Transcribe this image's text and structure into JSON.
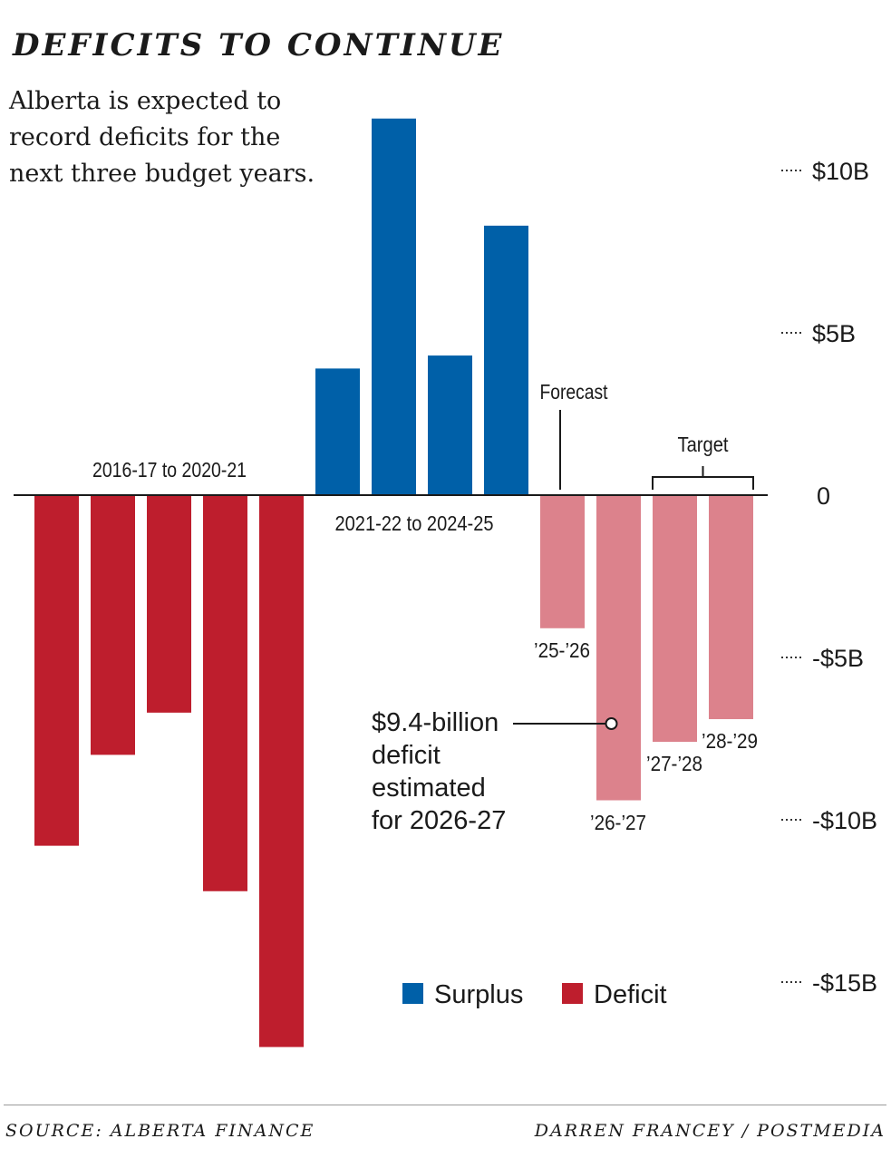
{
  "header": {
    "title": "DEFICITS TO CONTINUE",
    "subtitle": "Alberta is expected to record deficits for the next three budget years."
  },
  "footer": {
    "source": "SOURCE: ALBERTA FINANCE",
    "credit": "DARREN FRANCEY / POSTMEDIA"
  },
  "colors": {
    "surplus": "#0060a8",
    "deficit": "#be1e2d",
    "forecast": "#dc828c",
    "text": "#1a1a1a"
  },
  "chart_data": {
    "type": "bar",
    "title": "DEFICITS TO CONTINUE",
    "units": "billions of dollars",
    "ylim": [
      -17.5,
      11.7
    ],
    "yticks": [
      {
        "value": 10,
        "label": "$10B"
      },
      {
        "value": 5,
        "label": "$5B"
      },
      {
        "value": 0,
        "label": "0"
      },
      {
        "value": -5,
        "label": "-$5B"
      },
      {
        "value": -10,
        "label": "-$10B"
      },
      {
        "value": -15,
        "label": "-$15B"
      }
    ],
    "bars": [
      {
        "period": "2016-17",
        "value": -10.8,
        "kind": "deficit",
        "label": ""
      },
      {
        "period": "2017-18",
        "value": -8.0,
        "kind": "deficit",
        "label": ""
      },
      {
        "period": "2018-19",
        "value": -6.7,
        "kind": "deficit",
        "label": ""
      },
      {
        "period": "2019-20",
        "value": -12.2,
        "kind": "deficit",
        "label": ""
      },
      {
        "period": "2020-21",
        "value": -17.0,
        "kind": "deficit",
        "label": ""
      },
      {
        "period": "2021-22",
        "value": 3.9,
        "kind": "surplus",
        "label": ""
      },
      {
        "period": "2022-23",
        "value": 11.6,
        "kind": "surplus",
        "label": ""
      },
      {
        "period": "2023-24",
        "value": 4.3,
        "kind": "surplus",
        "label": ""
      },
      {
        "period": "2024-25",
        "value": 8.3,
        "kind": "surplus",
        "label": ""
      },
      {
        "period": "2025-26",
        "value": -4.1,
        "kind": "forecast",
        "label": "’25-’26"
      },
      {
        "period": "2026-27",
        "value": -9.4,
        "kind": "forecast",
        "label": "’26-’27"
      },
      {
        "period": "2027-28",
        "value": -7.6,
        "kind": "forecast",
        "label": "’27-’28"
      },
      {
        "period": "2028-29",
        "value": -6.9,
        "kind": "forecast",
        "label": "’28-’29"
      }
    ],
    "group_labels": {
      "first": "2016-17 to 2020-21",
      "second": "2021-22 to 2024-25",
      "forecast": "Forecast",
      "target": "Target"
    },
    "annotation": {
      "text": [
        "$9.4-billion",
        "deficit",
        "estimated",
        "for 2026-27"
      ],
      "period": "2026-27",
      "value": -9.4
    },
    "legend": [
      {
        "name": "Surplus",
        "kind": "surplus"
      },
      {
        "name": "Deficit",
        "kind": "deficit"
      }
    ]
  }
}
